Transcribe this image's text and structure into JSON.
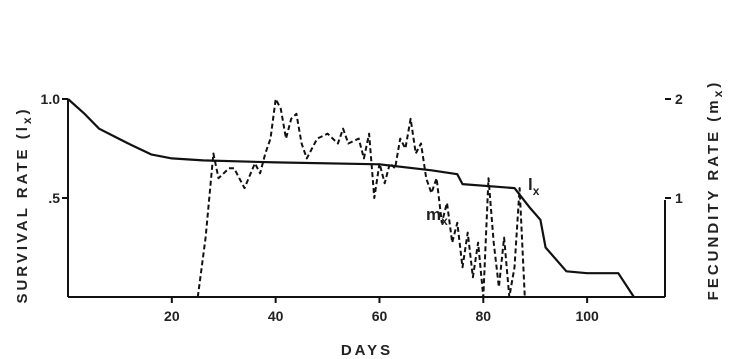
{
  "chart_data": {
    "type": "line",
    "xlabel": "DAYS",
    "ylabel_left": "SURVIVAL RATE (l",
    "ylabel_left_sub": "x",
    "ylabel_right": "FECUNDITY RATE (m",
    "ylabel_right_sub": "x",
    "xlim": [
      0,
      115
    ],
    "ylim_left": [
      0,
      1.0
    ],
    "ylim_right": [
      0,
      2
    ],
    "x_ticks": [
      20,
      40,
      60,
      80,
      100
    ],
    "x_tick_labels": [
      "20",
      "40",
      "60",
      "80",
      "100"
    ],
    "y_left_ticks": [
      0.5,
      1.0
    ],
    "y_left_tick_labels": [
      ".5",
      "1.0"
    ],
    "y_right_ticks": [
      1,
      2
    ],
    "y_right_tick_labels": [
      "1",
      "2"
    ],
    "grid": false,
    "series": [
      {
        "name": "l",
        "name_sub": "x",
        "axis": "left",
        "style": "solid",
        "x": [
          0,
          3,
          6,
          9,
          12,
          16,
          20,
          26,
          40,
          60,
          70,
          75,
          76,
          86,
          89,
          91,
          92,
          96,
          100,
          106,
          109
        ],
        "y": [
          1.0,
          0.93,
          0.85,
          0.81,
          0.77,
          0.72,
          0.7,
          0.69,
          0.68,
          0.67,
          0.64,
          0.62,
          0.57,
          0.55,
          0.45,
          0.39,
          0.25,
          0.13,
          0.12,
          0.12,
          0.0
        ]
      },
      {
        "name": "m",
        "name_sub": "x",
        "axis": "right",
        "style": "dashed",
        "x": [
          25,
          26.5,
          28,
          29,
          30,
          31,
          32,
          34,
          36,
          37,
          38,
          39,
          40,
          41,
          42,
          43,
          44,
          45,
          46,
          48,
          50,
          52,
          53,
          54,
          56,
          57,
          58,
          59,
          60,
          61,
          62,
          63,
          64,
          65,
          66,
          67,
          68,
          69,
          70,
          71,
          72,
          73,
          74,
          75,
          76,
          77,
          78,
          79,
          80,
          81,
          82,
          83,
          84,
          85,
          86,
          87,
          88
        ],
        "y": [
          0.0,
          0.6,
          1.45,
          1.2,
          1.25,
          1.3,
          1.3,
          1.1,
          1.35,
          1.25,
          1.45,
          1.6,
          2.0,
          1.9,
          1.6,
          1.8,
          1.85,
          1.55,
          1.4,
          1.6,
          1.65,
          1.55,
          1.7,
          1.55,
          1.6,
          1.4,
          1.65,
          1.0,
          1.35,
          1.15,
          1.35,
          1.3,
          1.6,
          1.5,
          1.8,
          1.45,
          1.55,
          1.2,
          1.05,
          1.2,
          0.75,
          0.95,
          0.55,
          0.75,
          0.3,
          0.65,
          0.2,
          0.55,
          0.0,
          1.2,
          0.55,
          0.1,
          0.6,
          0.0,
          0.3,
          1.1,
          0.0
        ]
      }
    ]
  }
}
